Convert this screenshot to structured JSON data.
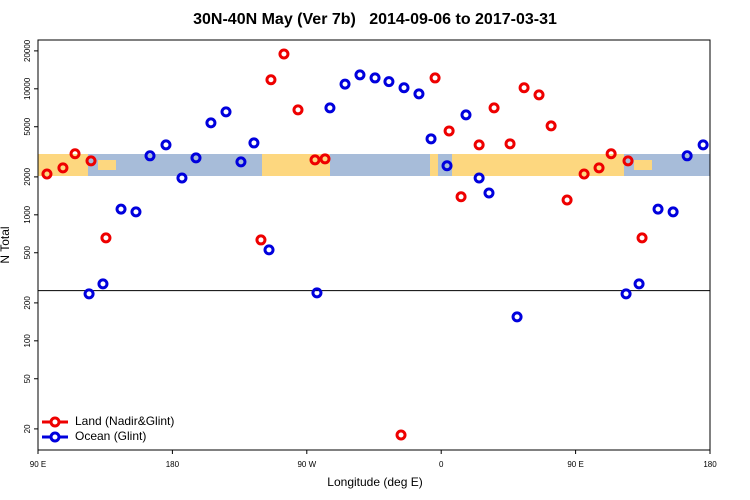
{
  "chart_data": {
    "type": "scatter",
    "title": "30N-40N May (Ver 7b)   2014-09-06 to 2017-03-31",
    "xlabel": "Longitude (deg E)",
    "ylabel": "N Total",
    "log_y": true,
    "xlim": [
      90,
      540
    ],
    "ylim": [
      13.6,
      24400
    ],
    "xticks": [
      {
        "value": 90,
        "label": "90 E"
      },
      180,
      {
        "value": 270,
        "label": "90 W"
      },
      {
        "value": 360,
        "label": "0"
      },
      {
        "value": 450,
        "label": "90 E"
      },
      {
        "value": 540,
        "label": "180"
      }
    ],
    "yticks": [
      20,
      50,
      100,
      200,
      500,
      1000,
      2000,
      5000,
      10000,
      20000
    ],
    "hline": 250,
    "legend": "bottom-left",
    "series": [
      {
        "name": "Land (Nadir&Glint)",
        "color": "#ee0000",
        "x": [
          96,
          106.7,
          114.8,
          125.5,
          135.5,
          239.3,
          246,
          254.7,
          264.1,
          275.5,
          282.2,
          333.1,
          355.9,
          365.3,
          373.3,
          385.4,
          395.4,
          406.1,
          415.5,
          425.5,
          433.6,
          444.3,
          455.7,
          465.7,
          473.8,
          485.1,
          494.5
        ],
        "values": [
          2110,
          2360,
          3050,
          2680,
          656,
          632,
          11800,
          18900,
          6800,
          2730,
          2780,
          17.9,
          12200,
          4630,
          1390,
          3590,
          7060,
          3660,
          10200,
          8950,
          5080,
          1310,
          2110,
          2360,
          3050,
          2680,
          656
        ]
      },
      {
        "name": "Ocean (Glint)",
        "color": "#0000dd",
        "x": [
          124.2,
          133.5,
          145.6,
          155.6,
          165,
          175.7,
          186.4,
          195.8,
          205.8,
          215.9,
          225.9,
          234.6,
          244.7,
          276.8,
          285.5,
          295.6,
          305.6,
          315.7,
          325,
          335.1,
          345.1,
          353.2,
          363.9,
          376.6,
          385.4,
          392,
          410.8,
          483.8,
          492.5,
          505.2,
          515.3,
          524.7,
          535.4
        ],
        "values": [
          236,
          283,
          1110,
          1055,
          2940,
          3590,
          1960,
          2830,
          5370,
          6560,
          2630,
          3720,
          527,
          240,
          7060,
          10900,
          12900,
          12200,
          11400,
          10200,
          9120,
          4010,
          2450,
          6210,
          1960,
          1490,
          155,
          236,
          283,
          1110,
          1055,
          2940,
          3590
        ]
      }
    ]
  }
}
